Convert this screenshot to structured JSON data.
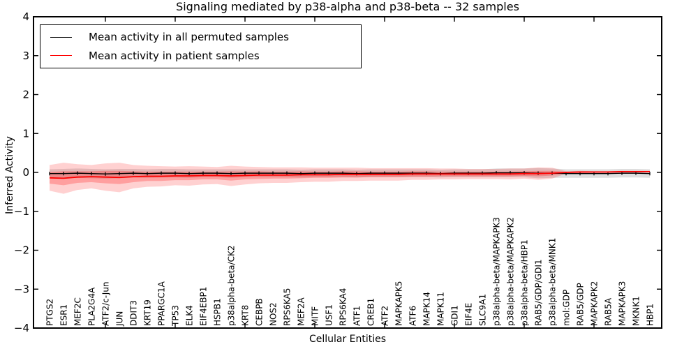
{
  "title": "Signaling mediated by p38-alpha and p38-beta -- 32 samples",
  "legend": {
    "entries": [
      {
        "label": "Mean activity in all permuted samples",
        "color": "#000000"
      },
      {
        "label": "Mean activity in patient samples",
        "color": "#ff0000"
      }
    ]
  },
  "colors": {
    "permuted_line": "#000000",
    "patient_line": "#ff0000",
    "permuted_band": "rgba(0,0,0,0.13)",
    "patient_band_outer": "rgba(255,0,0,0.18)",
    "patient_band_inner": "rgba(255,0,0,0.24)",
    "axis": "#000000"
  },
  "chart_data": {
    "type": "line",
    "title": "Signaling mediated by p38-alpha and p38-beta -- 32 samples",
    "xlabel": "Cellular Entities",
    "ylabel": "Inferred Activity",
    "ylim": [
      -4,
      4
    ],
    "yticks": [
      4,
      3,
      2,
      1,
      0,
      -1,
      -2,
      -3,
      -4
    ],
    "xtick_positions": [
      5,
      10,
      15,
      20,
      25,
      30,
      35,
      40
    ],
    "legend_position": "upper left",
    "grid": false,
    "categories": [
      "PTGS2",
      "ESR1",
      "MEF2C",
      "PLA2G4A",
      "ATF2/c-Jun",
      "JUN",
      "DDIT3",
      "KRT19",
      "PPARGC1A",
      "TP53",
      "ELK4",
      "EIF4EBP1",
      "HSPB1",
      "p38alpha-beta/CK2",
      "KRT8",
      "CEBPB",
      "NOS2",
      "RPS6KA5",
      "MEF2A",
      "MITF",
      "USF1",
      "RPS6KA4",
      "ATF1",
      "CREB1",
      "ATF2",
      "MAPKAPK5",
      "ATF6",
      "MAPK14",
      "MAPK11",
      "GDI1",
      "EIF4E",
      "SLC9A1",
      "p38alpha-beta/MAPKAPK3",
      "p38alpha-beta/MAPKAPK2",
      "p38alpha-beta/HBP1",
      "RAB5/GDP/GDI1",
      "p38alpha-beta/MNK1",
      "mol:GDP",
      "RAB5/GDP",
      "MAPKAPK2",
      "RAB5A",
      "MAPKAPK3",
      "MKNK1",
      "HBP1"
    ],
    "series": [
      {
        "name": "Mean activity in all permuted samples",
        "color": "#000000",
        "values": [
          -0.03,
          -0.03,
          -0.02,
          -0.03,
          -0.04,
          -0.03,
          -0.02,
          -0.03,
          -0.02,
          -0.02,
          -0.03,
          -0.02,
          -0.02,
          -0.03,
          -0.02,
          -0.02,
          -0.02,
          -0.02,
          -0.03,
          -0.02,
          -0.02,
          -0.02,
          -0.03,
          -0.02,
          -0.02,
          -0.02,
          -0.02,
          -0.02,
          -0.03,
          -0.02,
          -0.02,
          -0.02,
          -0.01,
          -0.01,
          -0.01,
          -0.02,
          -0.02,
          -0.03,
          -0.03,
          -0.03,
          -0.03,
          -0.02,
          -0.02,
          -0.03
        ],
        "band_half_width": [
          0.11,
          0.12,
          0.12,
          0.12,
          0.12,
          0.12,
          0.11,
          0.11,
          0.11,
          0.11,
          0.11,
          0.1,
          0.1,
          0.11,
          0.1,
          0.1,
          0.1,
          0.1,
          0.1,
          0.1,
          0.1,
          0.1,
          0.1,
          0.1,
          0.1,
          0.1,
          0.1,
          0.1,
          0.1,
          0.1,
          0.1,
          0.1,
          0.11,
          0.11,
          0.11,
          0.13,
          0.12,
          0.11,
          0.11,
          0.11,
          0.11,
          0.11,
          0.11,
          0.11
        ],
        "error_caps": true
      },
      {
        "name": "Mean activity in patient samples",
        "color": "#ff0000",
        "values": [
          -0.14,
          -0.15,
          -0.12,
          -0.11,
          -0.12,
          -0.13,
          -0.11,
          -0.1,
          -0.1,
          -0.09,
          -0.09,
          -0.08,
          -0.08,
          -0.09,
          -0.08,
          -0.07,
          -0.07,
          -0.07,
          -0.06,
          -0.06,
          -0.06,
          -0.05,
          -0.05,
          -0.05,
          -0.05,
          -0.05,
          -0.04,
          -0.04,
          -0.04,
          -0.04,
          -0.04,
          -0.04,
          -0.04,
          -0.04,
          -0.03,
          -0.03,
          -0.02,
          0.0,
          0.01,
          0.01,
          0.01,
          0.02,
          0.02,
          0.02
        ],
        "band_outer_half_width": [
          0.33,
          0.4,
          0.33,
          0.3,
          0.35,
          0.38,
          0.3,
          0.27,
          0.26,
          0.24,
          0.25,
          0.23,
          0.22,
          0.26,
          0.23,
          0.21,
          0.2,
          0.2,
          0.19,
          0.18,
          0.18,
          0.17,
          0.17,
          0.16,
          0.16,
          0.16,
          0.15,
          0.15,
          0.14,
          0.14,
          0.13,
          0.13,
          0.13,
          0.14,
          0.13,
          0.16,
          0.14,
          0.03,
          0.03,
          0.02,
          0.02,
          0.02,
          0.02,
          0.02
        ],
        "band_inner_half_width": [
          0.15,
          0.18,
          0.15,
          0.14,
          0.16,
          0.17,
          0.14,
          0.12,
          0.12,
          0.11,
          0.11,
          0.1,
          0.1,
          0.12,
          0.1,
          0.1,
          0.09,
          0.09,
          0.09,
          0.08,
          0.08,
          0.08,
          0.08,
          0.07,
          0.07,
          0.07,
          0.07,
          0.07,
          0.06,
          0.06,
          0.06,
          0.06,
          0.06,
          0.06,
          0.06,
          0.07,
          0.06,
          0.015,
          0.015,
          0.01,
          0.01,
          0.01,
          0.01,
          0.01
        ],
        "error_caps": false
      }
    ]
  }
}
